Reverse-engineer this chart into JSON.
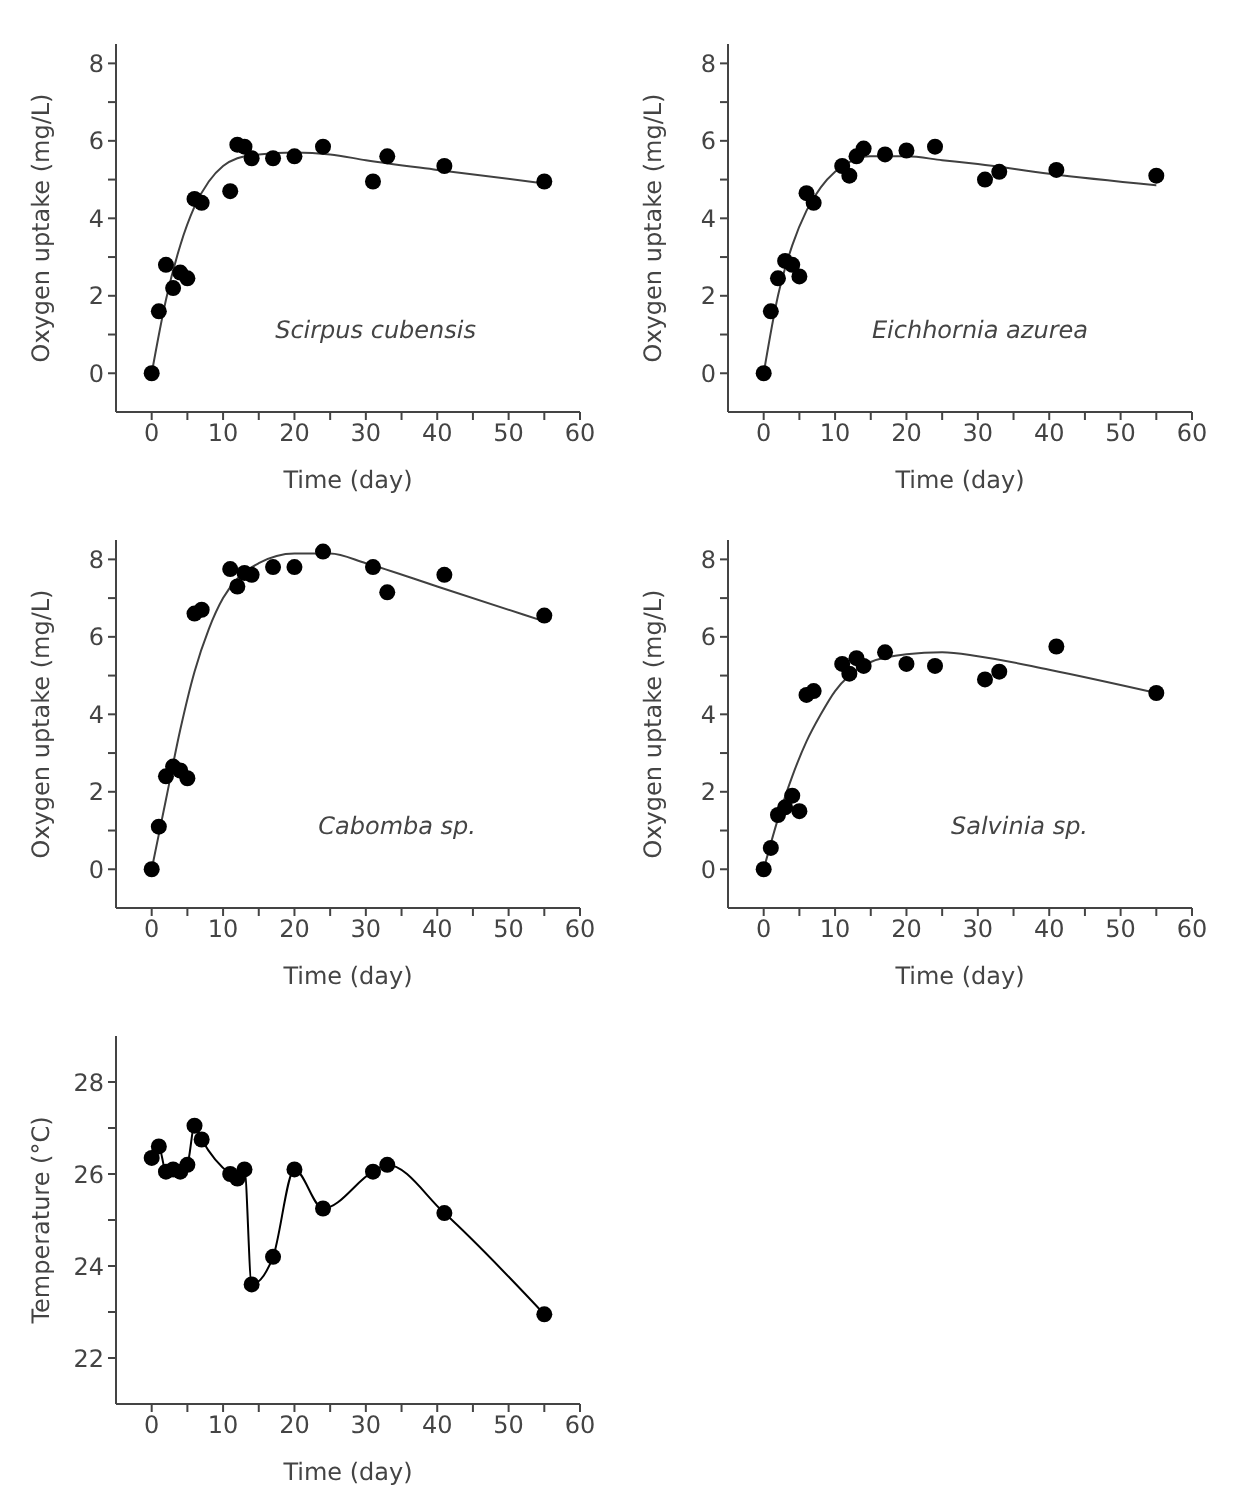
{
  "chart_data": [
    {
      "type": "scatter",
      "xlabel": "Time (day)",
      "ylabel": "Oxygen uptake (mg/L)",
      "annotations": [
        "Scirpus cubensis"
      ],
      "xlim": [
        -5,
        60
      ],
      "ylim": [
        -1,
        8.5
      ],
      "xticks": [
        0,
        {
          "value": 5,
          "label": null
        },
        10,
        {
          "value": 15,
          "label": null
        },
        20,
        {
          "value": 25,
          "label": null
        },
        30,
        {
          "value": 35,
          "label": null
        },
        40,
        {
          "value": 45,
          "label": null
        },
        50,
        {
          "value": 55,
          "label": null
        },
        60
      ],
      "yticks": [
        0,
        {
          "value": 1,
          "label": null
        },
        2,
        {
          "value": 3,
          "label": null
        },
        4,
        {
          "value": 5,
          "label": null
        },
        6,
        {
          "value": 7,
          "label": null
        },
        8
      ],
      "marker": "circle",
      "grid": false,
      "legend": false,
      "x": [
        0,
        1,
        2,
        3,
        4,
        5,
        6,
        7,
        11,
        12,
        13,
        14,
        17,
        20,
        24,
        31,
        33,
        41,
        55
      ],
      "series": [
        {
          "color": "#000000",
          "values": [
            0,
            1.6,
            2.8,
            2.2,
            2.6,
            2.45,
            4.5,
            4.4,
            4.7,
            5.9,
            5.85,
            5.55,
            5.55,
            5.6,
            5.85,
            4.95,
            5.6,
            5.35,
            4.95
          ]
        },
        {
          "type": "line",
          "marker": "none",
          "color": "#404040",
          "x": [
            0,
            2,
            4,
            6,
            8,
            10,
            12,
            15,
            20,
            25,
            30,
            40,
            55
          ],
          "values": [
            0,
            1.9,
            3.3,
            4.3,
            4.95,
            5.35,
            5.55,
            5.65,
            5.7,
            5.65,
            5.5,
            5.25,
            4.9
          ]
        }
      ]
    },
    {
      "type": "scatter",
      "xlabel": "Time (day)",
      "ylabel": "Oxygen uptake (mg/L)",
      "annotations": [
        "Eichhornia azurea"
      ],
      "xlim": [
        -5,
        60
      ],
      "ylim": [
        -1,
        8.5
      ],
      "xticks": [
        0,
        {
          "value": 5,
          "label": null
        },
        10,
        {
          "value": 15,
          "label": null
        },
        20,
        {
          "value": 25,
          "label": null
        },
        30,
        {
          "value": 35,
          "label": null
        },
        40,
        {
          "value": 45,
          "label": null
        },
        50,
        {
          "value": 55,
          "label": null
        },
        60
      ],
      "yticks": [
        0,
        {
          "value": 1,
          "label": null
        },
        2,
        {
          "value": 3,
          "label": null
        },
        4,
        {
          "value": 5,
          "label": null
        },
        6,
        {
          "value": 7,
          "label": null
        },
        8
      ],
      "marker": "circle",
      "grid": false,
      "legend": false,
      "x": [
        0,
        1,
        2,
        3,
        4,
        5,
        6,
        7,
        11,
        12,
        13,
        14,
        17,
        20,
        24,
        31,
        33,
        41,
        55
      ],
      "series": [
        {
          "color": "#000000",
          "values": [
            0,
            1.6,
            2.45,
            2.9,
            2.8,
            2.5,
            4.65,
            4.4,
            5.35,
            5.1,
            5.6,
            5.8,
            5.65,
            5.75,
            5.85,
            5.0,
            5.2,
            5.25,
            5.1
          ]
        },
        {
          "type": "line",
          "marker": "none",
          "color": "#404040",
          "x": [
            0,
            2,
            4,
            6,
            8,
            10,
            12,
            15,
            20,
            25,
            30,
            40,
            55
          ],
          "values": [
            0,
            2.0,
            3.3,
            4.2,
            4.8,
            5.2,
            5.45,
            5.6,
            5.6,
            5.5,
            5.4,
            5.15,
            4.85
          ]
        }
      ]
    },
    {
      "type": "scatter",
      "xlabel": "Time (day)",
      "ylabel": "Oxygen uptake (mg/L)",
      "annotations": [
        "Cabomba sp."
      ],
      "xlim": [
        -5,
        60
      ],
      "ylim": [
        -1,
        8.5
      ],
      "xticks": [
        0,
        {
          "value": 5,
          "label": null
        },
        10,
        {
          "value": 15,
          "label": null
        },
        20,
        {
          "value": 25,
          "label": null
        },
        30,
        {
          "value": 35,
          "label": null
        },
        40,
        {
          "value": 45,
          "label": null
        },
        50,
        {
          "value": 55,
          "label": null
        },
        60
      ],
      "yticks": [
        0,
        {
          "value": 1,
          "label": null
        },
        2,
        {
          "value": 3,
          "label": null
        },
        4,
        {
          "value": 5,
          "label": null
        },
        6,
        {
          "value": 7,
          "label": null
        },
        8
      ],
      "marker": "circle",
      "grid": false,
      "legend": false,
      "x": [
        0,
        1,
        2,
        3,
        4,
        5,
        6,
        7,
        11,
        12,
        13,
        14,
        17,
        20,
        24,
        31,
        33,
        41,
        55
      ],
      "series": [
        {
          "color": "#000000",
          "values": [
            0,
            1.1,
            2.4,
            2.65,
            2.55,
            2.35,
            6.6,
            6.7,
            7.75,
            7.3,
            7.65,
            7.6,
            7.8,
            7.8,
            8.2,
            7.8,
            7.15,
            7.6,
            6.55
          ]
        },
        {
          "type": "line",
          "marker": "none",
          "color": "#404040",
          "x": [
            0,
            2,
            4,
            6,
            8,
            10,
            12,
            15,
            20,
            25,
            30,
            40,
            55
          ],
          "values": [
            0,
            1.8,
            3.6,
            5.1,
            6.2,
            7.0,
            7.5,
            7.9,
            8.15,
            8.15,
            7.9,
            7.3,
            6.4
          ]
        }
      ]
    },
    {
      "type": "scatter",
      "xlabel": "Time (day)",
      "ylabel": "Oxygen uptake (mg/L)",
      "annotations": [
        "Salvinia sp."
      ],
      "xlim": [
        -5,
        60
      ],
      "ylim": [
        -1,
        8.5
      ],
      "xticks": [
        0,
        {
          "value": 5,
          "label": null
        },
        10,
        {
          "value": 15,
          "label": null
        },
        20,
        {
          "value": 25,
          "label": null
        },
        30,
        {
          "value": 35,
          "label": null
        },
        40,
        {
          "value": 45,
          "label": null
        },
        50,
        {
          "value": 55,
          "label": null
        },
        60
      ],
      "yticks": [
        0,
        {
          "value": 1,
          "label": null
        },
        2,
        {
          "value": 3,
          "label": null
        },
        4,
        {
          "value": 5,
          "label": null
        },
        6,
        {
          "value": 7,
          "label": null
        },
        8
      ],
      "marker": "circle",
      "grid": false,
      "legend": false,
      "x": [
        0,
        1,
        2,
        3,
        4,
        5,
        6,
        7,
        11,
        12,
        13,
        14,
        17,
        20,
        24,
        31,
        33,
        41,
        55
      ],
      "series": [
        {
          "color": "#000000",
          "values": [
            0,
            0.55,
            1.4,
            1.6,
            1.9,
            1.5,
            4.5,
            4.6,
            5.3,
            5.05,
            5.45,
            5.25,
            5.6,
            5.3,
            5.25,
            4.9,
            5.1,
            5.75,
            4.55
          ]
        },
        {
          "type": "line",
          "marker": "none",
          "color": "#404040",
          "x": [
            0,
            2,
            4,
            6,
            8,
            10,
            12,
            15,
            20,
            25,
            30,
            40,
            55
          ],
          "values": [
            0,
            1.3,
            2.4,
            3.3,
            4.0,
            4.6,
            5.0,
            5.35,
            5.55,
            5.6,
            5.5,
            5.15,
            4.55
          ]
        }
      ]
    },
    {
      "type": "line",
      "xlabel": "Time (day)",
      "ylabel": "Temperature (°C)",
      "xlim": [
        -5,
        60
      ],
      "ylim": [
        21,
        29
      ],
      "xticks": [
        0,
        {
          "value": 5,
          "label": null
        },
        10,
        {
          "value": 15,
          "label": null
        },
        20,
        {
          "value": 25,
          "label": null
        },
        30,
        {
          "value": 35,
          "label": null
        },
        40,
        {
          "value": 45,
          "label": null
        },
        50,
        {
          "value": 55,
          "label": null
        },
        60
      ],
      "yticks": [
        22,
        {
          "value": 23,
          "label": null
        },
        24,
        {
          "value": 25,
          "label": null
        },
        26,
        {
          "value": 27,
          "label": null
        },
        28
      ],
      "marker": "circle",
      "grid": false,
      "legend": false,
      "x": [
        0,
        1,
        2,
        3,
        4,
        5,
        6,
        7,
        11,
        12,
        13,
        14,
        17,
        20,
        24,
        31,
        33,
        41,
        55
      ],
      "series": [
        {
          "color": "#000000",
          "values": [
            26.35,
            26.6,
            26.05,
            26.1,
            26.05,
            26.2,
            27.05,
            26.75,
            26.0,
            25.9,
            26.1,
            23.6,
            24.2,
            26.1,
            25.25,
            26.05,
            26.2,
            25.15,
            22.95
          ]
        }
      ]
    }
  ]
}
